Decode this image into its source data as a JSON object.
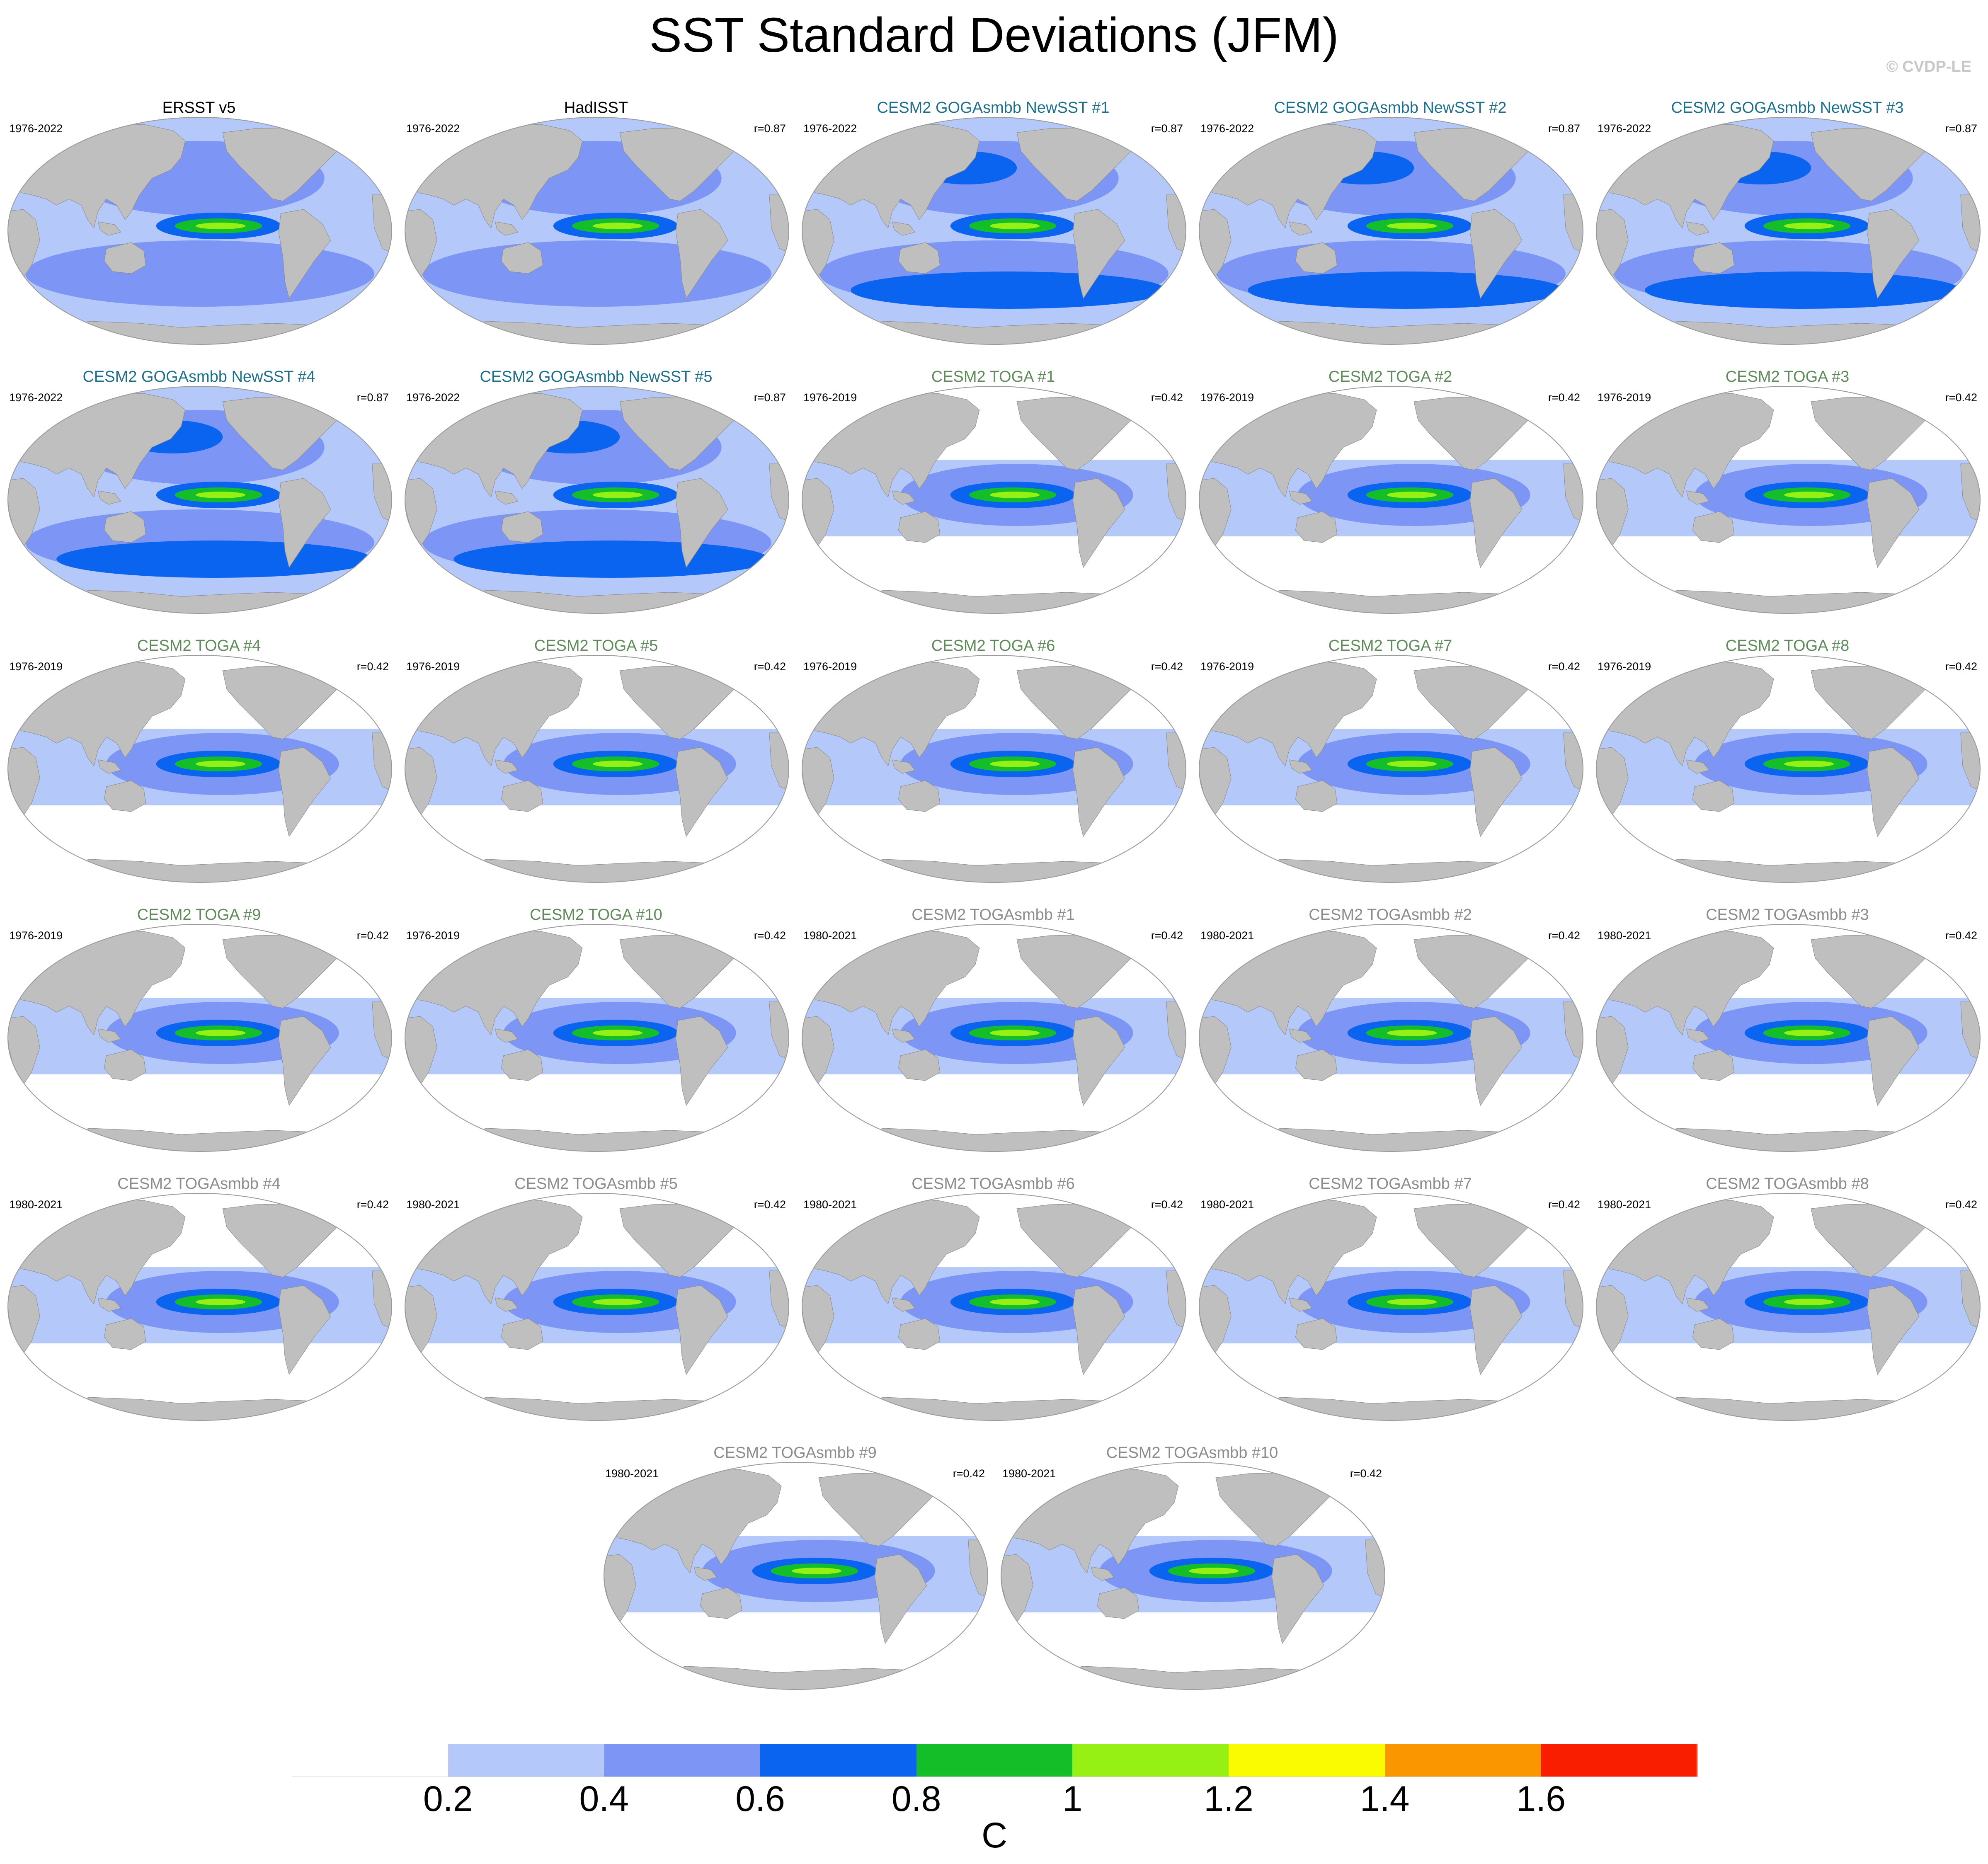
{
  "title": "SST Standard Deviations (JFM)",
  "credit": "© CVDP-LE",
  "colors": {
    "ocean_low": "#ffffff",
    "land": "#bfbfbf",
    "title_obs": "#000000",
    "title_goga": "#1f6f8b",
    "title_toga": "#5f8a5a",
    "title_togasmbb": "#8c8c8c"
  },
  "panels": [
    {
      "title": "ERSST v5",
      "years": "1976-2022",
      "corr": "",
      "group": "obs"
    },
    {
      "title": "HadISST",
      "years": "1976-2022",
      "corr": "r=0.87",
      "group": "obs"
    },
    {
      "title": "CESM2 GOGAsmbb NewSST #1",
      "years": "1976-2022",
      "corr": "r=0.87",
      "group": "goga"
    },
    {
      "title": "CESM2 GOGAsmbb NewSST #2",
      "years": "1976-2022",
      "corr": "r=0.87",
      "group": "goga"
    },
    {
      "title": "CESM2 GOGAsmbb NewSST #3",
      "years": "1976-2022",
      "corr": "r=0.87",
      "group": "goga"
    },
    {
      "title": "CESM2 GOGAsmbb NewSST #4",
      "years": "1976-2022",
      "corr": "r=0.87",
      "group": "goga"
    },
    {
      "title": "CESM2 GOGAsmbb NewSST #5",
      "years": "1976-2022",
      "corr": "r=0.87",
      "group": "goga"
    },
    {
      "title": "CESM2 TOGA #1",
      "years": "1976-2019",
      "corr": "r=0.42",
      "group": "toga"
    },
    {
      "title": "CESM2 TOGA #2",
      "years": "1976-2019",
      "corr": "r=0.42",
      "group": "toga"
    },
    {
      "title": "CESM2 TOGA #3",
      "years": "1976-2019",
      "corr": "r=0.42",
      "group": "toga"
    },
    {
      "title": "CESM2 TOGA #4",
      "years": "1976-2019",
      "corr": "r=0.42",
      "group": "toga"
    },
    {
      "title": "CESM2 TOGA #5",
      "years": "1976-2019",
      "corr": "r=0.42",
      "group": "toga"
    },
    {
      "title": "CESM2 TOGA #6",
      "years": "1976-2019",
      "corr": "r=0.42",
      "group": "toga"
    },
    {
      "title": "CESM2 TOGA #7",
      "years": "1976-2019",
      "corr": "r=0.42",
      "group": "toga"
    },
    {
      "title": "CESM2 TOGA #8",
      "years": "1976-2019",
      "corr": "r=0.42",
      "group": "toga"
    },
    {
      "title": "CESM2 TOGA #9",
      "years": "1976-2019",
      "corr": "r=0.42",
      "group": "toga"
    },
    {
      "title": "CESM2 TOGA #10",
      "years": "1976-2019",
      "corr": "r=0.42",
      "group": "toga"
    },
    {
      "title": "CESM2 TOGAsmbb #1",
      "years": "1980-2021",
      "corr": "r=0.42",
      "group": "togasmbb"
    },
    {
      "title": "CESM2 TOGAsmbb #2",
      "years": "1980-2021",
      "corr": "r=0.42",
      "group": "togasmbb"
    },
    {
      "title": "CESM2 TOGAsmbb #3",
      "years": "1980-2021",
      "corr": "r=0.42",
      "group": "togasmbb"
    },
    {
      "title": "CESM2 TOGAsmbb #4",
      "years": "1980-2021",
      "corr": "r=0.42",
      "group": "togasmbb"
    },
    {
      "title": "CESM2 TOGAsmbb #5",
      "years": "1980-2021",
      "corr": "r=0.42",
      "group": "togasmbb"
    },
    {
      "title": "CESM2 TOGAsmbb #6",
      "years": "1980-2021",
      "corr": "r=0.42",
      "group": "togasmbb"
    },
    {
      "title": "CESM2 TOGAsmbb #7",
      "years": "1980-2021",
      "corr": "r=0.42",
      "group": "togasmbb"
    },
    {
      "title": "CESM2 TOGAsmbb #8",
      "years": "1980-2021",
      "corr": "r=0.42",
      "group": "togasmbb"
    },
    {
      "title": "CESM2 TOGAsmbb #9",
      "years": "1980-2021",
      "corr": "r=0.42",
      "group": "togasmbb"
    },
    {
      "title": "CESM2 TOGAsmbb #10",
      "years": "1980-2021",
      "corr": "r=0.42",
      "group": "togasmbb"
    }
  ],
  "colorbar": {
    "colors": [
      "#ffffff",
      "#b4c8fa",
      "#7d96f5",
      "#0a64f0",
      "#14be28",
      "#96f014",
      "#fafa00",
      "#fa9600",
      "#fa1e00"
    ],
    "labels": [
      "0.2",
      "0.4",
      "0.6",
      "0.8",
      "1",
      "1.2",
      "1.4",
      "1.6"
    ],
    "unit": "C"
  }
}
